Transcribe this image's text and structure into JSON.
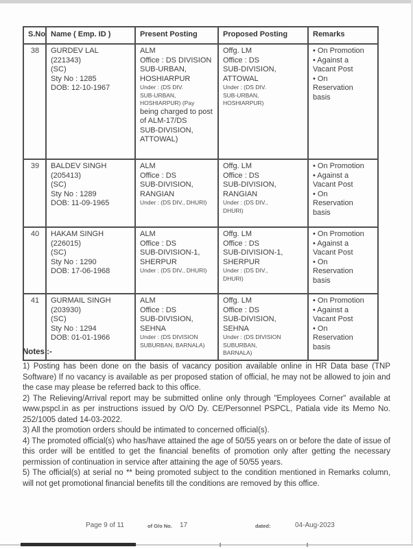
{
  "colors": {
    "border": "#4e4e4e",
    "text": "#3c3c3c",
    "scan_edge": "#d2d2d2"
  },
  "table": {
    "headers": [
      "S.No.",
      "Name ( Emp. ID )",
      "Present Posting",
      "Proposed Posting",
      "Remarks"
    ],
    "rows": [
      {
        "sno": "38",
        "name": [
          "GURDEV LAL",
          "(221343)",
          "(SC)",
          "Sty No : 1285",
          "DOB: 12-10-1967"
        ],
        "present": [
          {
            "t": "ALM"
          },
          {
            "t": "Office : DS DIVISION"
          },
          {
            "t": "SUB-URBAN,"
          },
          {
            "t": "HOSHIARPUR"
          },
          {
            "t": "Under : (DS DIV.",
            "s": true
          },
          {
            "t": "SUB-URBAN,",
            "s": true
          },
          {
            "t": "HOSHIARPUR) (Pay",
            "s": true
          },
          {
            "t": "being charged to post"
          },
          {
            "t": "of ALM-17/DS"
          },
          {
            "t": "SUB-DIVISION,"
          },
          {
            "t": "ATTOWAL)"
          }
        ],
        "proposed": [
          {
            "t": "Offg. LM"
          },
          {
            "t": "Office : DS"
          },
          {
            "t": "SUB-DIVISION,"
          },
          {
            "t": "ATTOWAL"
          },
          {
            "t": "Under : (DS DIV.",
            "s": true
          },
          {
            "t": "SUB-URBAN,",
            "s": true
          },
          {
            "t": "HOSHIARPUR)",
            "s": true
          }
        ],
        "remarks": [
          "• On Promotion",
          "• Against a",
          "Vacant Post",
          "• On",
          "Reservation",
          "basis"
        ]
      },
      {
        "sno": "39",
        "name": [
          "BALDEV SINGH",
          "(205413)",
          "(SC)",
          "Sty No : 1289",
          "DOB: 11-09-1965"
        ],
        "present": [
          {
            "t": "ALM"
          },
          {
            "t": "Office : DS"
          },
          {
            "t": "SUB-DIVISION,"
          },
          {
            "t": "RANGIAN"
          },
          {
            "t": "Under : (DS DIV., DHURI)",
            "s": true
          }
        ],
        "proposed": [
          {
            "t": "Offg. LM"
          },
          {
            "t": "Office : DS"
          },
          {
            "t": "SUB-DIVISION,"
          },
          {
            "t": "RANGIAN"
          },
          {
            "t": "Under : (DS DIV.,",
            "s": true
          },
          {
            "t": "DHURI)",
            "s": true
          }
        ],
        "remarks": [
          "• On Promotion",
          "• Against a",
          "Vacant Post",
          "• On",
          "Reservation",
          "basis"
        ]
      },
      {
        "sno": "40",
        "name": [
          "HAKAM SINGH",
          "(226015)",
          "(SC)",
          "Sty No : 1290",
          "DOB: 17-06-1968"
        ],
        "present": [
          {
            "t": "ALM"
          },
          {
            "t": "Office : DS"
          },
          {
            "t": "SUB-DIVISION-1,"
          },
          {
            "t": "SHERPUR"
          },
          {
            "t": "Under : (DS DIV., DHURI)",
            "s": true
          }
        ],
        "proposed": [
          {
            "t": "Offg. LM"
          },
          {
            "t": "Office : DS"
          },
          {
            "t": "SUB-DIVISION-1,"
          },
          {
            "t": "SHERPUR"
          },
          {
            "t": "Under : (DS DIV.,",
            "s": true
          },
          {
            "t": "DHURI)",
            "s": true
          }
        ],
        "remarks": [
          "• On Promotion",
          "• Against a",
          "Vacant Post",
          "• On",
          "Reservation",
          "basis"
        ]
      },
      {
        "sno": "41",
        "name": [
          "GURMAIL SINGH",
          "(203930)",
          "(SC)",
          "Sty No : 1294",
          "DOB: 01-01-1966"
        ],
        "present": [
          {
            "t": "ALM"
          },
          {
            "t": "Office : DS"
          },
          {
            "t": "SUB-DIVISION,"
          },
          {
            "t": "SEHNA"
          },
          {
            "t": "Under : (DS DIVISION",
            "s": true
          },
          {
            "t": "SUBURBAN, BARNALA)",
            "s": true
          }
        ],
        "proposed": [
          {
            "t": "Offg. LM"
          },
          {
            "t": "Office : DS"
          },
          {
            "t": "SUB-DIVISION,"
          },
          {
            "t": "SEHNA"
          },
          {
            "t": "Under : (DS DIVISION",
            "s": true
          },
          {
            "t": "SUBURBAN,",
            "s": true
          },
          {
            "t": "BARNALA)",
            "s": true
          }
        ],
        "remarks": [
          "• On Promotion",
          "• Against a",
          "Vacant Post",
          "• On",
          "Reservation",
          "basis"
        ]
      }
    ]
  },
  "notes": {
    "heading": "Notes :-",
    "items": [
      "1) Posting has been done on the basis of vacancy position available online in HR Data base (TNP Software) If no vacancy is available as per proposed station of official, he may not be allowed to join and the case may please be referred back to this office.",
      "2) The Relieving/Arrival report may be submitted online only through \"Employees Corner\" available at www.pspcl.in as per instructions issued by O/O Dy. CE/Personnel PSPCL, Patiala vide its Memo No. 252/1005 dated 14-03-2022.",
      "3) All the promotion orders should be intimated to concerned official(s).",
      "4) The promoted official(s) who has/have attained the age of 50/55 years on or before the date of issue of this order will be entitled to get the financial benefits of promotion only after getting the necessary permission of continuation in service after attaining the age of 50/55 years.",
      "5) The official(s) at serial no ** being promoted subject to the condition mentioned in Remarks column, will not get promotional financial benefits till the conditions are removed by this office."
    ]
  },
  "footer": {
    "page": "Page 9 of 11",
    "of_label": "of O/o No.",
    "of_value": "17",
    "dated_label": "dated:",
    "date": "04-Aug-2023"
  }
}
